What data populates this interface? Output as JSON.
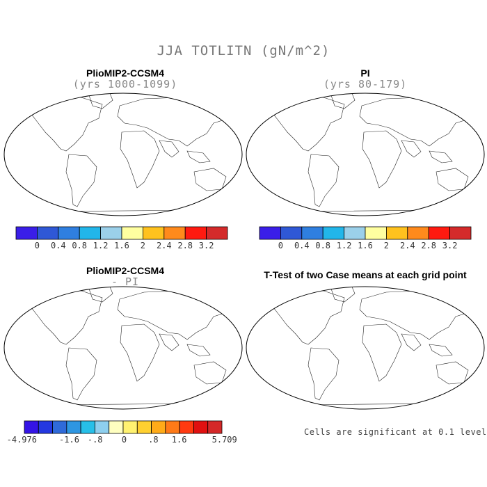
{
  "title": "JJA TOTLITN (gN/m^2)",
  "panels": {
    "a": {
      "title": "PlioMIP2-CCSM4",
      "subtitle": "(yrs 1000-1099)"
    },
    "b": {
      "title": "PI",
      "subtitle": "(yrs 80-179)"
    },
    "c": {
      "title": "PlioMIP2-CCSM4",
      "subtitle": "- PI"
    },
    "d": {
      "title": "T-Test of two Case means at each grid point",
      "note": "Cells are significant at 0.1 level"
    }
  },
  "colorbar_abs": {
    "colors": [
      "#3a1ee8",
      "#2f58d6",
      "#2f7fe0",
      "#22b6ea",
      "#9bd0ea",
      "#ffffa0",
      "#ffc21e",
      "#ff8a1c",
      "#ff1a10",
      "#d42a2a"
    ],
    "tick_labels": [
      "0",
      "0.4",
      "0.8",
      "1.2",
      "1.6",
      "2",
      "2.4",
      "2.8",
      "3.2"
    ]
  },
  "colorbar_diff": {
    "colors": [
      "#3414e6",
      "#2438e0",
      "#2f6ad9",
      "#2e96e2",
      "#27bfe8",
      "#8ecfee",
      "#ffffc0",
      "#fff270",
      "#ffd030",
      "#ffab18",
      "#ff7a18",
      "#ff3a10",
      "#e01010",
      "#d42828"
    ],
    "tick_labels": [
      "-4.976",
      "-1.6",
      "-.8",
      "0",
      ".8",
      "1.6",
      "5.709"
    ]
  },
  "map_colors": {
    "a": [
      "#2f58d6",
      "#2f58d6",
      "#2f7fe0",
      "#ffc21e",
      "#ff1a10",
      "#d42a2a",
      "#ffffa0"
    ],
    "b": [
      "#2f58d6",
      "#2f58d6",
      "#2f58d6",
      "#2f7fe0",
      "#ffc21e",
      "#ff1a10",
      "#d42a2a"
    ],
    "c": [
      "#ffffc0",
      "#ffffc0",
      "#ffd030",
      "#ff7a18",
      "#ff3a10",
      "#2f6ad9",
      "#8ecfee"
    ],
    "d": [
      "#ff0000"
    ]
  }
}
